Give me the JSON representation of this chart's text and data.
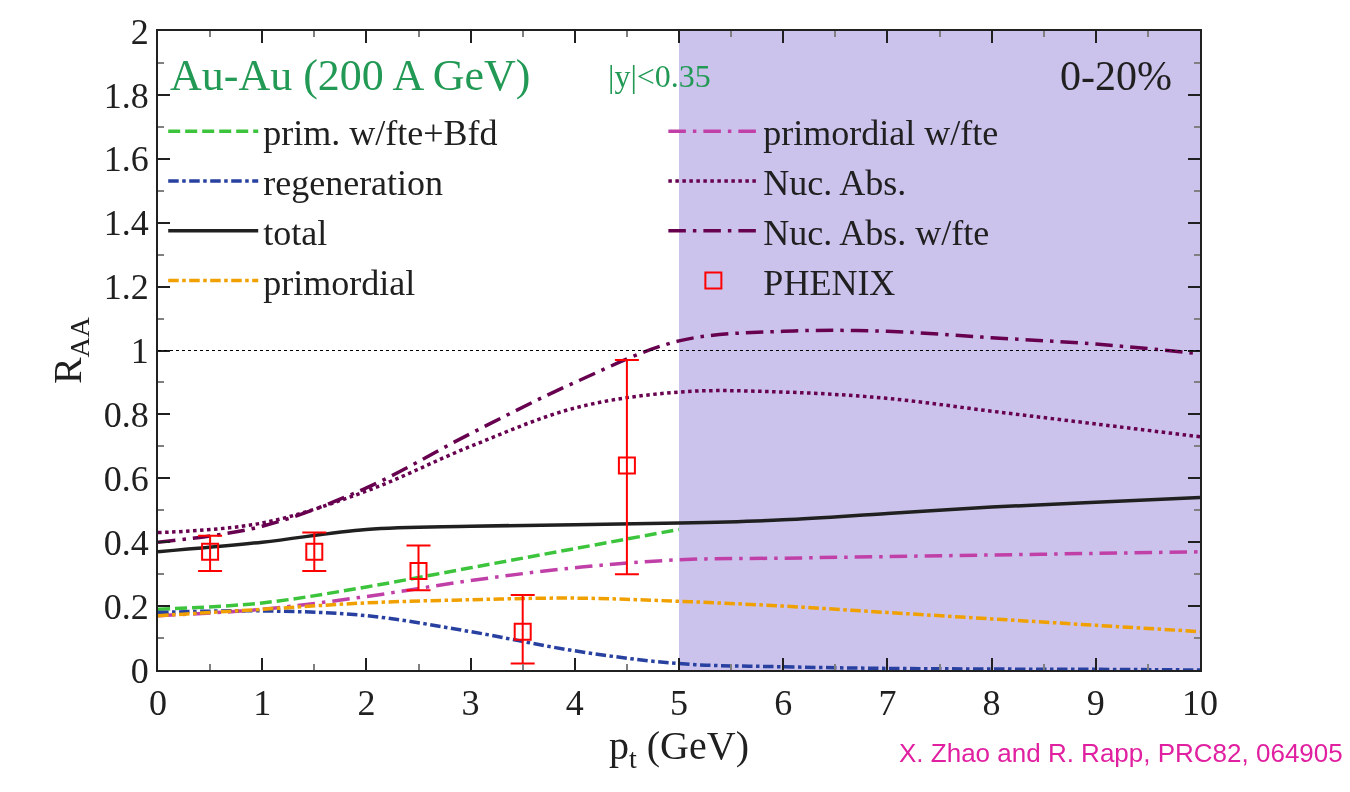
{
  "chart_data": {
    "type": "line",
    "xlabel": "p$_{t}$ (GeV)",
    "ylabel": "R$_{AA}$",
    "x": [
      0,
      1,
      2,
      3,
      4,
      5,
      6,
      7,
      8,
      9,
      10
    ],
    "series": [
      {
        "name": "prim. w/fte+Bfd",
        "color": "#3cc43c",
        "line_style": "dashed",
        "values": [
          0.19,
          0.21,
          0.26,
          0.32,
          0.38,
          0.44,
          null,
          null,
          null,
          null,
          null
        ]
      },
      {
        "name": "primordial w/fte",
        "color": "#c040a8",
        "line_style": "longdashdot",
        "values": [
          0.17,
          0.19,
          0.23,
          0.28,
          0.32,
          0.345,
          0.35,
          0.355,
          0.36,
          0.365,
          0.37
        ]
      },
      {
        "name": "regeneration",
        "color": "#2840a0",
        "line_style": "dashdot",
        "values": [
          0.18,
          0.185,
          0.17,
          0.12,
          0.06,
          0.02,
          0.01,
          0.005,
          0.003,
          0.002,
          0.0
        ]
      },
      {
        "name": "Nuc. Abs.",
        "color": "#680050",
        "line_style": "dotted",
        "values": [
          0.43,
          0.46,
          0.56,
          0.7,
          0.82,
          0.87,
          0.87,
          0.85,
          0.81,
          0.77,
          0.73
        ]
      },
      {
        "name": "total",
        "color": "#202020",
        "line_style": "solid",
        "values": [
          0.37,
          0.4,
          0.44,
          0.45,
          0.455,
          0.46,
          0.47,
          0.49,
          0.51,
          0.525,
          0.54
        ]
      },
      {
        "name": "Nuc. Abs. w/fte",
        "color": "#680050",
        "line_style": "longdashdot",
        "values": [
          0.4,
          0.45,
          0.57,
          0.74,
          0.9,
          1.03,
          1.06,
          1.06,
          1.04,
          1.02,
          0.99
        ]
      },
      {
        "name": "primordial",
        "color": "#f0a000",
        "line_style": "dashdot",
        "values": [
          0.17,
          0.19,
          0.21,
          0.22,
          0.225,
          0.215,
          0.2,
          0.18,
          0.16,
          0.14,
          0.12
        ]
      },
      {
        "name": "PHENIX",
        "type": "scatter",
        "marker": "square",
        "color": "#ff0000",
        "x": [
          0.5,
          1.5,
          2.5,
          3.5,
          4.5
        ],
        "values": [
          0.37,
          0.37,
          0.31,
          0.12,
          0.64
        ],
        "errors": [
          [
            0.31,
            0.42
          ],
          [
            0.31,
            0.43
          ],
          [
            0.25,
            0.39
          ],
          [
            0.02,
            0.235
          ],
          [
            0.3,
            0.97
          ]
        ]
      }
    ],
    "xlim": [
      0,
      10
    ],
    "ylim": [
      0,
      2
    ],
    "xticks": [
      0,
      1,
      2,
      3,
      4,
      5,
      6,
      7,
      8,
      9,
      10
    ],
    "yticks": [
      0,
      0.2,
      0.4,
      0.6,
      0.8,
      1,
      1.2,
      1.4,
      1.6,
      1.8,
      2
    ],
    "ref_lines": [
      {
        "axis": "y",
        "value": 1,
        "color": "#000000",
        "line_style": "dotted"
      }
    ],
    "bands": [
      {
        "axis": "x",
        "from": 5,
        "to": 10,
        "color": "#cbc3ec"
      }
    ],
    "annotations": [
      "Au-Au (200 A GeV)",
      "|y|<0.35",
      "0-20%",
      "X. Zhao and R. Rapp, PRC82, 064905"
    ],
    "legend": "top",
    "grid": false
  }
}
